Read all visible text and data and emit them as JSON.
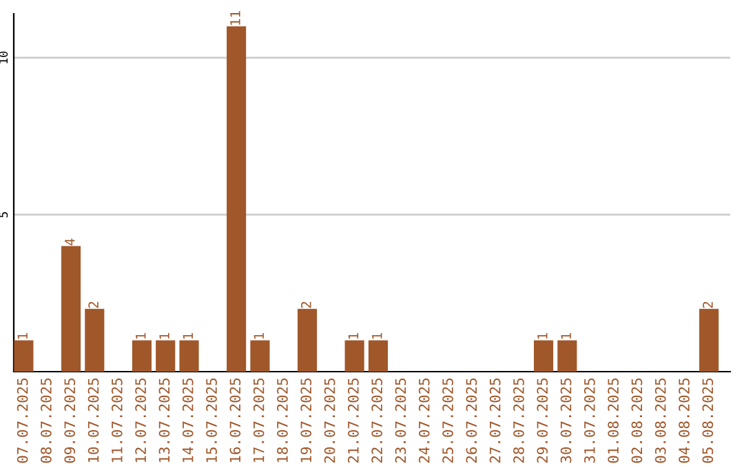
{
  "chart_data": {
    "type": "bar",
    "categories": [
      "07.07.2025",
      "08.07.2025",
      "09.07.2025",
      "10.07.2025",
      "11.07.2025",
      "12.07.2025",
      "13.07.2025",
      "14.07.2025",
      "15.07.2025",
      "16.07.2025",
      "17.07.2025",
      "18.07.2025",
      "19.07.2025",
      "20.07.2025",
      "21.07.2025",
      "22.07.2025",
      "23.07.2025",
      "24.07.2025",
      "25.07.2025",
      "26.07.2025",
      "27.07.2025",
      "28.07.2025",
      "29.07.2025",
      "30.07.2025",
      "31.07.2025",
      "01.08.2025",
      "02.08.2025",
      "03.08.2025",
      "04.08.2025",
      "05.08.2025"
    ],
    "values": [
      1,
      0,
      4,
      2,
      0,
      1,
      1,
      1,
      0,
      11,
      1,
      0,
      2,
      0,
      1,
      1,
      0,
      0,
      0,
      0,
      0,
      0,
      1,
      1,
      0,
      0,
      0,
      0,
      0,
      2
    ],
    "value_labels": [
      "1",
      null,
      "4",
      "2",
      null,
      "1",
      "1",
      "1",
      null,
      "11",
      "1",
      null,
      "2",
      null,
      "1",
      "1",
      null,
      null,
      null,
      null,
      null,
      null,
      "1",
      "1",
      null,
      null,
      null,
      null,
      null,
      "2"
    ],
    "color": "#a0572a",
    "ylim": [
      0,
      11.4
    ],
    "yticks": [
      5,
      10
    ],
    "grid": "y"
  }
}
